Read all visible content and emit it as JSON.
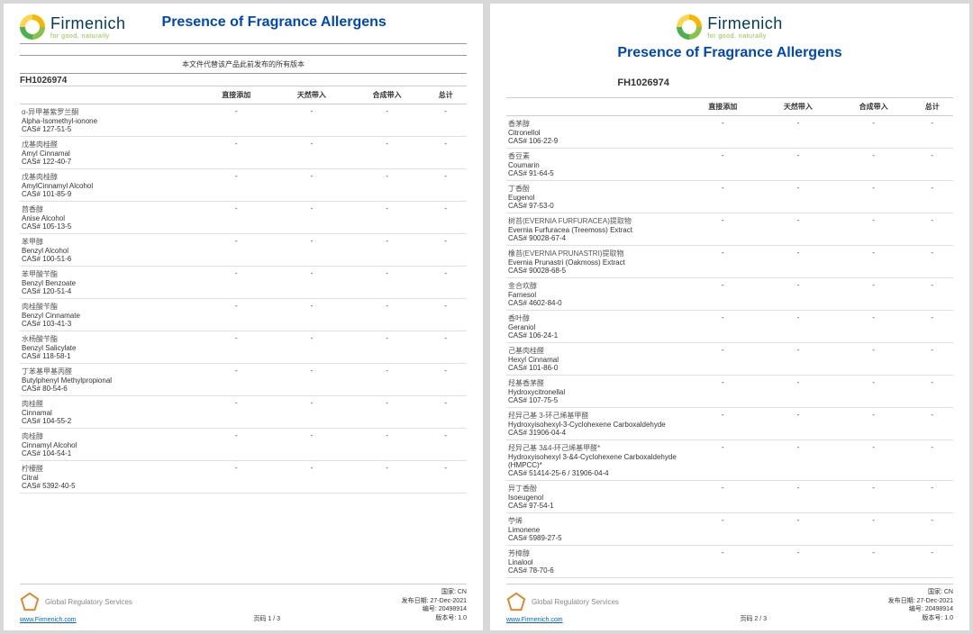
{
  "brand": "Firmenich",
  "tagline": "for good, naturally",
  "title": "Presence of Fragrance Allergens",
  "subtitle": "本文件代替该产品此前发布的所有版本",
  "code": "FH1026974",
  "columns": [
    "",
    "直接添加",
    "天然带入",
    "合成带入",
    "总计"
  ],
  "page1_rows": [
    {
      "cn": "α-异甲基紫罗兰酮",
      "en": "Alpha-Isomethyl-ionone",
      "cas": "CAS# 127-51-5"
    },
    {
      "cn": "戊基肉桂醛",
      "en": "Amyl Cinnamal",
      "cas": "CAS# 122-40-7"
    },
    {
      "cn": "戊基肉桂醇",
      "en": "AmylCinnamyl Alcohol",
      "cas": "CAS# 101-85-9"
    },
    {
      "cn": "茴香醇",
      "en": "Anise Alcohol",
      "cas": "CAS# 105-13-5"
    },
    {
      "cn": "苯甲醇",
      "en": "Benzyl Alcohol",
      "cas": "CAS# 100-51-6"
    },
    {
      "cn": "苯甲酸苄酯",
      "en": "Benzyl Benzoate",
      "cas": "CAS# 120-51-4"
    },
    {
      "cn": "肉桂酸苄酯",
      "en": "Benzyl Cinnamate",
      "cas": "CAS# 103-41-3"
    },
    {
      "cn": "水杨酸苄酯",
      "en": "Benzyl Salicylate",
      "cas": "CAS# 118-58-1"
    },
    {
      "cn": "丁苯基甲基丙醛",
      "en": "Butylphenyl Methylpropional",
      "cas": "CAS# 80-54-6"
    },
    {
      "cn": "肉桂醛",
      "en": "Cinnamal",
      "cas": "CAS# 104-55-2"
    },
    {
      "cn": "肉桂醇",
      "en": "Cinnamyl Alcohol",
      "cas": "CAS# 104-54-1"
    },
    {
      "cn": "柠檬醛",
      "en": "Citral",
      "cas": "CAS# 5392-40-5"
    }
  ],
  "page2_rows": [
    {
      "cn": "香茅醇",
      "en": "Citronellol",
      "cas": "CAS# 106-22-9"
    },
    {
      "cn": "香豆素",
      "en": "Coumarin",
      "cas": "CAS# 91-64-5"
    },
    {
      "cn": "丁香酚",
      "en": "Eugenol",
      "cas": "CAS# 97-53-0"
    },
    {
      "cn": "树苔(EVERNIA FURFURACEA)提取物",
      "en": "Evernia Furfuracea (Treemoss) Extract",
      "cas": "CAS# 90028-67-4"
    },
    {
      "cn": "橡苔(EVERNIA PRUNASTRI)提取物",
      "en": "Evernia Prunastri (Oakmoss) Extract",
      "cas": "CAS# 90028-68-5"
    },
    {
      "cn": "金合欢醇",
      "en": "Farnesol",
      "cas": "CAS# 4602-84-0"
    },
    {
      "cn": "香叶醇",
      "en": "Geraniol",
      "cas": "CAS# 106-24-1"
    },
    {
      "cn": "己基肉桂醛",
      "en": "Hexyl Cinnamal",
      "cas": "CAS# 101-86-0"
    },
    {
      "cn": "羟基香茅醛",
      "en": "Hydroxycitronellal",
      "cas": "CAS# 107-75-5"
    },
    {
      "cn": "羟异己基 3-环己烯基甲醛",
      "en": "Hydroxyisohexyl-3-Cyclohexene Carboxaldehyde",
      "cas": "CAS# 31906-04-4"
    },
    {
      "cn": "羟异己基 3&4-环己烯基甲醛*",
      "en": "Hydroxyisohexyl 3-&4-Cyclohexene Carboxaldehyde (HMPCC)*",
      "cas": "CAS# 51414-25-6 / 31906-04-4"
    },
    {
      "cn": "异丁香酚",
      "en": "Isoeugenol",
      "cas": "CAS# 97-54-1"
    },
    {
      "cn": "苧烯",
      "en": "Limonene",
      "cas": "CAS# 5989-27-5"
    },
    {
      "cn": "芳樟醇",
      "en": "Linalool",
      "cas": "CAS# 78-70-6"
    }
  ],
  "footer": {
    "grs": "Global Regulatory Services",
    "link_text": "www.Firmenich.com",
    "page1": "页码 1 / 3",
    "page2": "页码 2 / 3",
    "country_label": "国家:",
    "country": "CN",
    "date_label": "发布日期:",
    "date": "27-Dec-2021",
    "id_label": "编号:",
    "id": "20498914",
    "ver_label": "版本号:",
    "ver": "1.0"
  }
}
